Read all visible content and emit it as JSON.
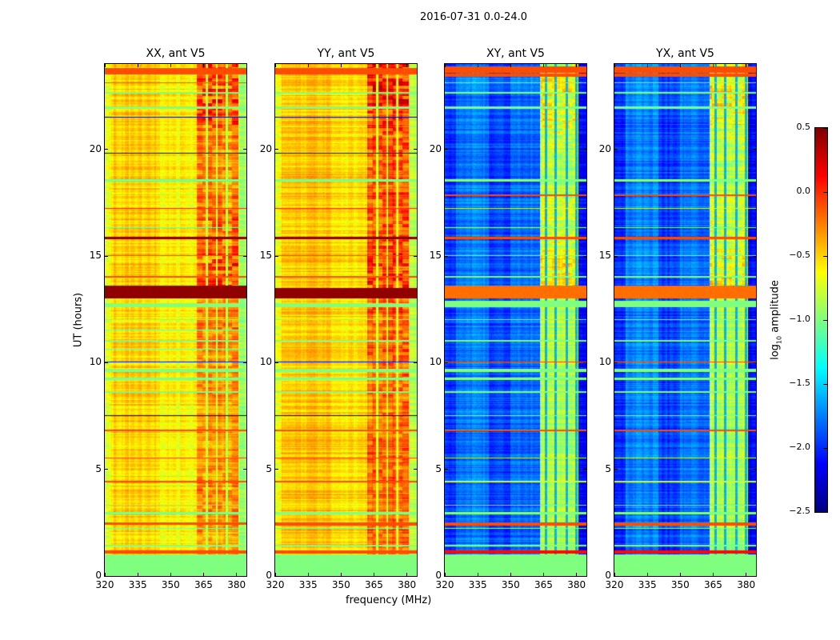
{
  "suptitle": "2016-07-31 0.0-24.0",
  "xlabel": "frequency (MHz)",
  "ylabel": "UT (hours)",
  "colorbar": {
    "label_main": "log",
    "label_sub": "10",
    "label_rest": " amplitude",
    "range": [
      -2.5,
      0.5
    ],
    "ticks": [
      "0.5",
      "0.0",
      "−0.5",
      "−1.0",
      "−1.5",
      "−2.0",
      "−2.5"
    ],
    "tick_values": [
      0.5,
      0.0,
      -0.5,
      -1.0,
      -1.5,
      -2.0,
      -2.5
    ],
    "colormap": "jet"
  },
  "chart_data": [
    {
      "type": "heatmap",
      "title": "XX, ant V5",
      "xlim": [
        320,
        384.5
      ],
      "ylim": [
        0,
        24
      ],
      "xticks": [
        "320",
        "335",
        "350",
        "365",
        "380"
      ],
      "xtick_values": [
        320,
        335,
        350,
        365,
        380
      ],
      "yticks": [
        "0",
        "5",
        "10",
        "15",
        "20"
      ],
      "ytick_values": [
        0,
        5,
        10,
        15,
        20
      ],
      "base_level": -0.6,
      "freq_segments": [
        [
          320,
          323,
          -0.05
        ],
        [
          323,
          345,
          0.1
        ],
        [
          345,
          362,
          0.0
        ],
        [
          362,
          381,
          0.15
        ],
        [
          381,
          384.5,
          -0.3
        ]
      ],
      "rfi_range": [
        362,
        381
      ],
      "rfi_hour_boost": [
        0,
        0.2,
        0.3,
        0.3,
        0.35,
        0.3,
        0.25,
        0.2,
        0.25,
        0.25,
        0.3,
        0.35,
        0.35,
        0.6,
        0.6,
        0.5,
        0.45,
        0.4,
        0.3,
        0.3,
        0.35,
        0.6,
        0.7,
        0.6
      ],
      "vertical_lines": [
        [
          366.5,
          -0.8
        ],
        [
          371,
          -0.8
        ],
        [
          375.5,
          -0.8
        ]
      ],
      "bands": [
        [
          0,
          1.0,
          -1.0
        ],
        [
          1.05,
          1.2,
          -0.1
        ],
        [
          1.4,
          1.45,
          -1.0
        ],
        [
          2.2,
          2.25,
          -1.0
        ],
        [
          2.4,
          2.5,
          -0.1
        ],
        [
          2.9,
          3.0,
          -1.0
        ],
        [
          3.3,
          3.35,
          -1.0
        ],
        [
          4.4,
          4.45,
          -0.1
        ],
        [
          5.5,
          5.55,
          -0.1
        ],
        [
          6.1,
          6.13,
          -2.5
        ],
        [
          6.8,
          6.85,
          -0.1
        ],
        [
          7.5,
          7.53,
          -2.5
        ],
        [
          8.6,
          8.65,
          -1.0
        ],
        [
          9.2,
          9.3,
          -1.0
        ],
        [
          9.55,
          9.7,
          -1.0
        ],
        [
          10.0,
          10.05,
          -2.0
        ],
        [
          10.6,
          10.65,
          -1.0
        ],
        [
          11.0,
          11.05,
          -1.0
        ],
        [
          11.5,
          11.55,
          -1.0
        ],
        [
          12.0,
          12.05,
          -1.0
        ],
        [
          12.6,
          12.8,
          -1.0
        ],
        [
          13.0,
          13.6,
          0.45
        ],
        [
          14.0,
          14.05,
          -0.1
        ],
        [
          15.0,
          15.05,
          -0.1
        ],
        [
          15.8,
          15.9,
          0.45
        ],
        [
          16.3,
          16.35,
          -1.0
        ],
        [
          17.2,
          17.25,
          0.0
        ],
        [
          18.1,
          18.13,
          -2.5
        ],
        [
          18.5,
          18.6,
          -1.0
        ],
        [
          19.8,
          19.83,
          -2.5
        ],
        [
          21.5,
          21.53,
          -2.5
        ],
        [
          21.9,
          22.0,
          -1.0
        ],
        [
          22.6,
          22.7,
          -1.0
        ],
        [
          23.1,
          23.15,
          -0.1
        ],
        [
          23.5,
          23.8,
          -0.1
        ]
      ]
    },
    {
      "type": "heatmap",
      "title": "YY, ant V5",
      "xlim": [
        320,
        384.5
      ],
      "ylim": [
        0,
        24
      ],
      "xticks": [
        "320",
        "335",
        "350",
        "365",
        "380"
      ],
      "xtick_values": [
        320,
        335,
        350,
        365,
        380
      ],
      "yticks": [
        "0",
        "5",
        "10",
        "15",
        "20"
      ],
      "ytick_values": [
        0,
        5,
        10,
        15,
        20
      ],
      "base_level": -0.55,
      "freq_segments": [
        [
          320,
          323,
          -0.1
        ],
        [
          323,
          345,
          0.1
        ],
        [
          345,
          362,
          0.0
        ],
        [
          362,
          381,
          0.2
        ],
        [
          381,
          384.5,
          -0.3
        ]
      ],
      "rfi_range": [
        362,
        381
      ],
      "rfi_hour_boost": [
        0,
        0.3,
        0.3,
        0.3,
        0.4,
        0.35,
        0.3,
        0.3,
        0.35,
        0.35,
        0.35,
        0.35,
        0.4,
        0.6,
        0.6,
        0.5,
        0.45,
        0.45,
        0.35,
        0.4,
        0.45,
        0.55,
        0.75,
        0.7
      ],
      "vertical_lines": [
        [
          366.5,
          -0.7
        ],
        [
          371,
          -0.7
        ],
        [
          375.5,
          -0.7
        ]
      ],
      "bands": [
        [
          0,
          1.0,
          -1.0
        ],
        [
          1.05,
          1.2,
          -0.1
        ],
        [
          1.4,
          1.45,
          -1.0
        ],
        [
          2.2,
          2.25,
          -1.0
        ],
        [
          2.35,
          2.5,
          -0.1
        ],
        [
          2.9,
          3.0,
          -1.0
        ],
        [
          4.4,
          4.45,
          -0.1
        ],
        [
          5.5,
          5.55,
          -0.1
        ],
        [
          6.1,
          6.13,
          -2.5
        ],
        [
          6.8,
          6.85,
          -0.1
        ],
        [
          7.5,
          7.53,
          -2.5
        ],
        [
          8.6,
          8.65,
          -1.0
        ],
        [
          9.2,
          9.3,
          -1.0
        ],
        [
          9.55,
          9.7,
          -1.0
        ],
        [
          10.0,
          10.05,
          -2.0
        ],
        [
          11.0,
          11.05,
          -1.0
        ],
        [
          12.0,
          12.05,
          -1.0
        ],
        [
          12.6,
          12.8,
          -1.0
        ],
        [
          13.0,
          13.5,
          0.45
        ],
        [
          14.0,
          14.05,
          -0.1
        ],
        [
          15.0,
          15.05,
          -0.1
        ],
        [
          15.8,
          15.9,
          0.45
        ],
        [
          17.2,
          17.25,
          0.0
        ],
        [
          18.1,
          18.13,
          -2.5
        ],
        [
          18.5,
          18.6,
          -1.0
        ],
        [
          19.8,
          19.83,
          -2.5
        ],
        [
          21.5,
          21.53,
          -2.5
        ],
        [
          21.9,
          22.0,
          -1.0
        ],
        [
          22.6,
          22.7,
          -1.0
        ],
        [
          23.5,
          23.8,
          -0.1
        ]
      ]
    },
    {
      "type": "heatmap",
      "title": "XY, ant V5",
      "xlim": [
        320,
        384.5
      ],
      "ylim": [
        0,
        24
      ],
      "xticks": [
        "320",
        "335",
        "350",
        "365",
        "380"
      ],
      "xtick_values": [
        320,
        335,
        350,
        365,
        380
      ],
      "yticks": [
        "0",
        "5",
        "10",
        "15",
        "20"
      ],
      "ytick_values": [
        0,
        5,
        10,
        15,
        20
      ],
      "base_level": -1.9,
      "freq_segments": [
        [
          320,
          325,
          -0.1
        ],
        [
          325,
          340,
          0.15
        ],
        [
          340,
          350,
          -0.05
        ],
        [
          350,
          363.5,
          0.1
        ],
        [
          363.5,
          381,
          1.0
        ],
        [
          381,
          384.5,
          -0.2
        ]
      ],
      "rfi_range": [
        363.5,
        381
      ],
      "rfi_hour_boost": [
        0,
        0.0,
        0.1,
        0.1,
        0.1,
        0.1,
        0.05,
        0.05,
        0.1,
        0.1,
        0.1,
        0.1,
        0.1,
        0.5,
        0.5,
        0.3,
        0.3,
        0.25,
        0.15,
        0.2,
        0.25,
        0.4,
        0.5,
        0.4
      ],
      "vertical_lines": [
        [
          366,
          -1.6
        ],
        [
          370.5,
          -1.6
        ],
        [
          375.5,
          -1.6
        ],
        [
          380,
          -1.6
        ]
      ],
      "bands": [
        [
          0,
          1.0,
          -1.0
        ],
        [
          1.05,
          1.2,
          0.1
        ],
        [
          1.4,
          1.45,
          -1.0
        ],
        [
          2.2,
          2.25,
          -1.0
        ],
        [
          2.35,
          2.5,
          -0.1
        ],
        [
          2.9,
          3.0,
          -1.0
        ],
        [
          3.3,
          3.35,
          -1.0
        ],
        [
          4.4,
          4.45,
          -0.8
        ],
        [
          5.5,
          5.55,
          -0.8
        ],
        [
          6.1,
          6.13,
          -0.8
        ],
        [
          6.8,
          6.85,
          -0.1
        ],
        [
          7.5,
          7.53,
          -1.0
        ],
        [
          8.6,
          8.65,
          -1.0
        ],
        [
          9.2,
          9.3,
          -1.0
        ],
        [
          9.55,
          9.7,
          -1.0
        ],
        [
          10.0,
          10.05,
          -0.1
        ],
        [
          11.0,
          11.05,
          -1.0
        ],
        [
          12.0,
          12.05,
          -1.0
        ],
        [
          12.6,
          12.9,
          -1.0
        ],
        [
          13.0,
          13.6,
          -0.2
        ],
        [
          14.0,
          14.05,
          -1.0
        ],
        [
          15.0,
          15.05,
          -1.0
        ],
        [
          15.8,
          15.9,
          -0.1
        ],
        [
          16.3,
          16.35,
          -1.0
        ],
        [
          17.2,
          17.25,
          -0.8
        ],
        [
          17.8,
          17.9,
          -0.1
        ],
        [
          18.5,
          18.6,
          -1.0
        ],
        [
          21.9,
          22.0,
          -1.0
        ],
        [
          22.6,
          22.7,
          -1.0
        ],
        [
          23.1,
          23.15,
          -1.0
        ],
        [
          23.4,
          23.55,
          -0.1
        ],
        [
          23.6,
          23.9,
          -0.1
        ]
      ]
    },
    {
      "type": "heatmap",
      "title": "YX, ant V5",
      "xlim": [
        320,
        384.5
      ],
      "ylim": [
        0,
        24
      ],
      "xticks": [
        "320",
        "335",
        "350",
        "365",
        "380"
      ],
      "xtick_values": [
        320,
        335,
        350,
        365,
        380
      ],
      "yticks": [
        "0",
        "5",
        "10",
        "15",
        "20"
      ],
      "ytick_values": [
        0,
        5,
        10,
        15,
        20
      ],
      "base_level": -1.9,
      "freq_segments": [
        [
          320,
          325,
          -0.1
        ],
        [
          325,
          340,
          0.15
        ],
        [
          340,
          350,
          -0.05
        ],
        [
          350,
          363.5,
          0.1
        ],
        [
          363.5,
          381,
          1.0
        ],
        [
          381,
          384.5,
          -0.2
        ]
      ],
      "rfi_range": [
        363.5,
        381
      ],
      "rfi_hour_boost": [
        0,
        0.0,
        0.1,
        0.1,
        0.1,
        0.1,
        0.05,
        0.05,
        0.1,
        0.1,
        0.1,
        0.1,
        0.1,
        0.5,
        0.5,
        0.3,
        0.3,
        0.25,
        0.15,
        0.2,
        0.25,
        0.4,
        0.5,
        0.4
      ],
      "vertical_lines": [
        [
          366,
          -1.6
        ],
        [
          370.5,
          -1.6
        ],
        [
          375.5,
          -1.6
        ],
        [
          380,
          -1.6
        ]
      ],
      "bands": [
        [
          0,
          1.0,
          -1.0
        ],
        [
          1.05,
          1.2,
          0.1
        ],
        [
          1.4,
          1.45,
          -1.0
        ],
        [
          2.2,
          2.25,
          -1.0
        ],
        [
          2.35,
          2.5,
          -0.1
        ],
        [
          2.9,
          3.0,
          -1.0
        ],
        [
          3.3,
          3.35,
          -1.0
        ],
        [
          4.4,
          4.45,
          -0.8
        ],
        [
          5.5,
          5.55,
          -0.8
        ],
        [
          6.1,
          6.13,
          -0.8
        ],
        [
          6.8,
          6.85,
          -0.1
        ],
        [
          7.5,
          7.53,
          -1.0
        ],
        [
          8.6,
          8.65,
          -1.0
        ],
        [
          9.2,
          9.3,
          -1.0
        ],
        [
          9.55,
          9.7,
          -1.0
        ],
        [
          10.0,
          10.05,
          -0.1
        ],
        [
          11.0,
          11.05,
          -1.0
        ],
        [
          12.0,
          12.05,
          -1.0
        ],
        [
          12.6,
          12.9,
          -1.0
        ],
        [
          13.0,
          13.6,
          -0.2
        ],
        [
          14.0,
          14.05,
          -1.0
        ],
        [
          15.0,
          15.05,
          -1.0
        ],
        [
          15.8,
          15.9,
          -0.1
        ],
        [
          16.3,
          16.35,
          -1.0
        ],
        [
          17.2,
          17.25,
          -0.8
        ],
        [
          17.8,
          17.9,
          -0.1
        ],
        [
          18.5,
          18.6,
          -1.0
        ],
        [
          21.9,
          22.0,
          -1.0
        ],
        [
          22.6,
          22.7,
          -1.0
        ],
        [
          23.1,
          23.15,
          -1.0
        ],
        [
          23.4,
          23.55,
          -0.1
        ],
        [
          23.6,
          23.9,
          -0.1
        ]
      ]
    }
  ]
}
